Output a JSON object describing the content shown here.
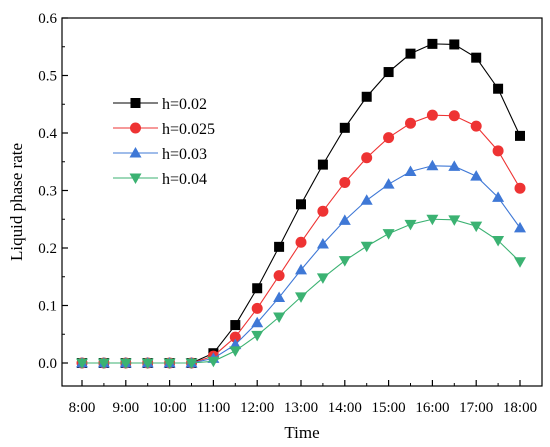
{
  "chart_data": {
    "type": "line",
    "title": "",
    "xlabel": "Time",
    "ylabel": "Liquid phase rate",
    "categories": [
      "8:00",
      "",
      "9:00",
      "",
      "10:00",
      "",
      "11:00",
      "",
      "12:00",
      "",
      "13:00",
      "",
      "14:00",
      "",
      "15:00",
      "",
      "16:00",
      "",
      "17:00",
      "",
      "18:00"
    ],
    "x_tick_labels": [
      "8:00",
      "9:00",
      "10:00",
      "11:00",
      "12:00",
      "13:00",
      "14:00",
      "15:00",
      "16:00",
      "17:00",
      "18:00"
    ],
    "ylim": [
      -0.04,
      0.6
    ],
    "y_ticks": [
      0.0,
      0.1,
      0.2,
      0.3,
      0.4,
      0.5,
      0.6
    ],
    "y_tick_labels": [
      "0.0",
      "0.1",
      "0.2",
      "0.3",
      "0.4",
      "0.5",
      "0.6"
    ],
    "grid": false,
    "legend_position": "upper-left",
    "series": [
      {
        "name": "h=0.02",
        "color": "#000000",
        "marker": "square",
        "values": [
          0.0,
          0.0,
          0.0,
          0.0,
          0.0,
          0.0,
          0.017,
          0.066,
          0.13,
          0.202,
          0.276,
          0.345,
          0.409,
          0.463,
          0.506,
          0.538,
          0.555,
          0.554,
          0.531,
          0.477,
          0.395
        ]
      },
      {
        "name": "h=0.025",
        "color": "#ee3333",
        "marker": "circle",
        "values": [
          0.0,
          0.0,
          0.0,
          0.0,
          0.0,
          0.0,
          0.012,
          0.045,
          0.095,
          0.152,
          0.21,
          0.264,
          0.314,
          0.357,
          0.392,
          0.417,
          0.431,
          0.43,
          0.412,
          0.369,
          0.304
        ]
      },
      {
        "name": "h=0.03",
        "color": "#3f78d6",
        "marker": "triangle-up",
        "values": [
          0.0,
          0.0,
          0.0,
          0.0,
          0.0,
          0.0,
          0.008,
          0.032,
          0.07,
          0.114,
          0.162,
          0.207,
          0.248,
          0.283,
          0.311,
          0.333,
          0.343,
          0.342,
          0.325,
          0.288,
          0.235
        ]
      },
      {
        "name": "h=0.04",
        "color": "#3bb272",
        "marker": "triangle-down",
        "values": [
          0.0,
          0.0,
          0.0,
          0.0,
          0.0,
          0.0,
          0.003,
          0.021,
          0.048,
          0.08,
          0.115,
          0.148,
          0.178,
          0.203,
          0.225,
          0.241,
          0.25,
          0.249,
          0.238,
          0.213,
          0.176
        ]
      }
    ]
  }
}
